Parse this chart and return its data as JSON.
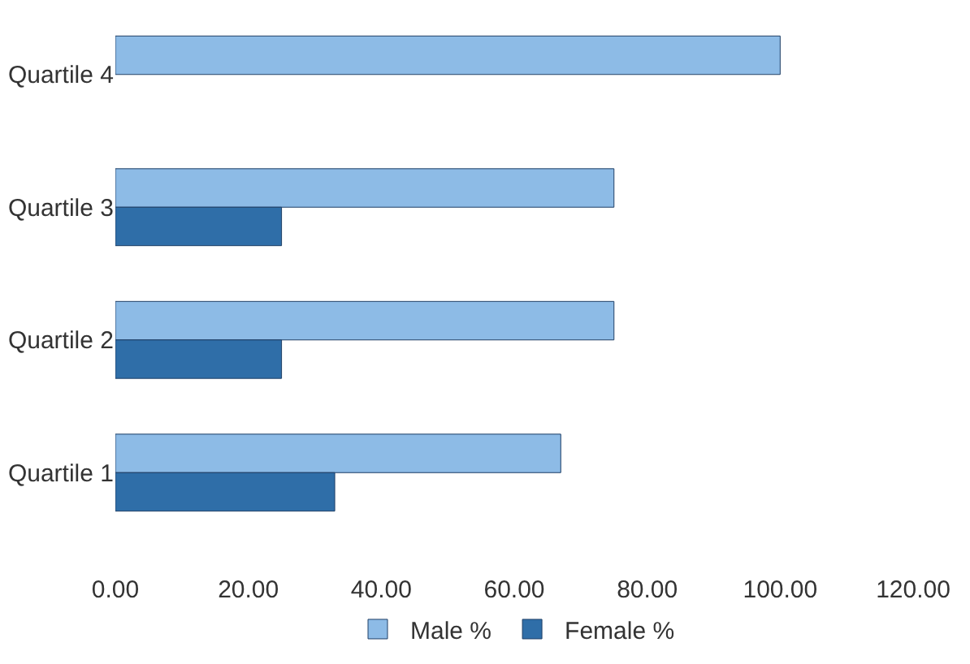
{
  "chart_data": {
    "type": "bar",
    "orientation": "horizontal",
    "categories": [
      "Quartile 4",
      "Quartile 3",
      "Quartile 2",
      "Quartile 1"
    ],
    "series": [
      {
        "name": "Male %",
        "color": "#8dbbe6",
        "values": [
          100,
          75,
          75,
          67
        ]
      },
      {
        "name": "Female %",
        "color": "#2f6ea8",
        "values": [
          null,
          25,
          25,
          33
        ]
      }
    ],
    "xlim": [
      0,
      120
    ],
    "xticks": [
      {
        "value": 0,
        "label": "0.00"
      },
      {
        "value": 20,
        "label": "20.00"
      },
      {
        "value": 40,
        "label": "40.00"
      },
      {
        "value": 60,
        "label": "60.00"
      },
      {
        "value": 80,
        "label": "80.00"
      },
      {
        "value": 100,
        "label": "100.00"
      },
      {
        "value": 120,
        "label": "120.00"
      }
    ],
    "legend": "bottom"
  }
}
